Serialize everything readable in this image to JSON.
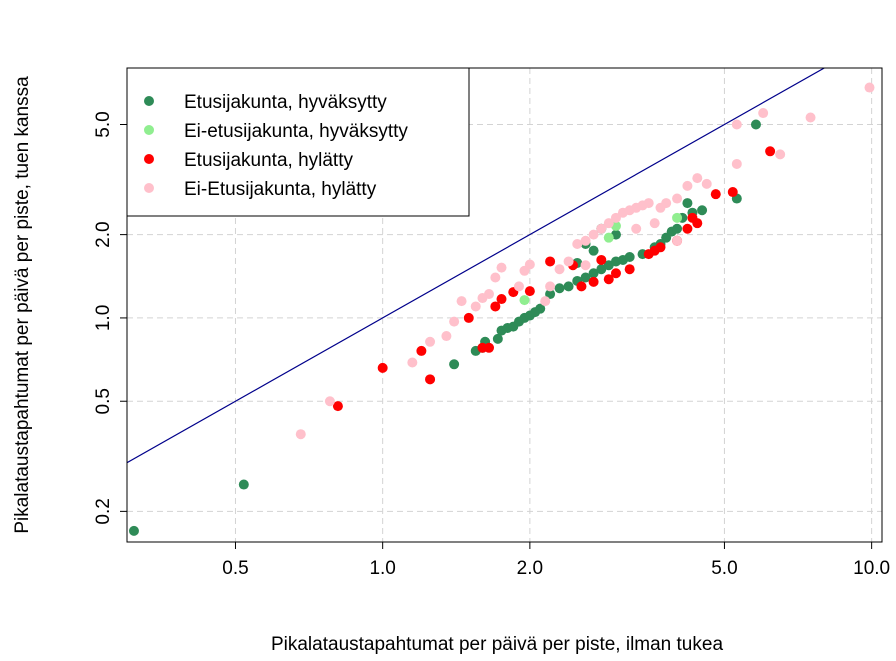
{
  "chart_data": {
    "type": "scatter",
    "title": "",
    "xlabel": "Pikalataustapahtumat per päivä per piste, ilman tukea",
    "ylabel": "Pikalataustapahtumat per päivä per piste, tuen kanssa",
    "xscale": "log",
    "yscale": "log",
    "xlim": [
      0.3,
      10.5
    ],
    "ylim": [
      0.155,
      8.0
    ],
    "xticks": [
      0.5,
      1.0,
      2.0,
      5.0,
      10.0
    ],
    "xtick_labels": [
      "0.5",
      "1.0",
      "2.0",
      "5.0",
      "10.0"
    ],
    "yticks": [
      0.2,
      0.5,
      1.0,
      2.0,
      5.0
    ],
    "ytick_labels": [
      "0.2",
      "0.5",
      "1.0",
      "2.0",
      "5.0"
    ],
    "grid": true,
    "legend_position": "top-left",
    "reference_line": {
      "type": "identity",
      "color": "#00008b"
    },
    "series": [
      {
        "name": "Etusijakunta, hyväksytty",
        "color": "#2e8b57",
        "points": [
          [
            0.31,
            0.17
          ],
          [
            0.52,
            0.25
          ],
          [
            1.4,
            0.68
          ],
          [
            1.55,
            0.76
          ],
          [
            1.6,
            0.78
          ],
          [
            1.62,
            0.82
          ],
          [
            1.72,
            0.84
          ],
          [
            1.75,
            0.9
          ],
          [
            1.8,
            0.92
          ],
          [
            1.85,
            0.93
          ],
          [
            1.9,
            0.97
          ],
          [
            1.95,
            1.0
          ],
          [
            2.0,
            1.02
          ],
          [
            2.05,
            1.05
          ],
          [
            2.1,
            1.08
          ],
          [
            2.2,
            1.22
          ],
          [
            2.3,
            1.28
          ],
          [
            2.4,
            1.3
          ],
          [
            2.5,
            1.36
          ],
          [
            2.6,
            1.4
          ],
          [
            2.7,
            1.45
          ],
          [
            2.8,
            1.5
          ],
          [
            2.9,
            1.55
          ],
          [
            3.0,
            1.6
          ],
          [
            3.1,
            1.62
          ],
          [
            3.2,
            1.66
          ],
          [
            3.4,
            1.7
          ],
          [
            3.6,
            1.8
          ],
          [
            3.7,
            1.85
          ],
          [
            3.8,
            1.95
          ],
          [
            3.9,
            2.05
          ],
          [
            4.0,
            2.1
          ],
          [
            4.1,
            2.3
          ],
          [
            4.3,
            2.4
          ],
          [
            4.5,
            2.45
          ],
          [
            2.5,
            1.58
          ],
          [
            2.7,
            1.75
          ],
          [
            2.6,
            1.85
          ],
          [
            3.0,
            2.0
          ],
          [
            2.8,
            2.1
          ],
          [
            4.2,
            2.6
          ],
          [
            5.3,
            2.7
          ],
          [
            5.8,
            5.0
          ]
        ]
      },
      {
        "name": "Ei-etusijakunta, hyväksytty",
        "color": "#90ee90",
        "points": [
          [
            1.95,
            1.16
          ],
          [
            2.9,
            1.95
          ],
          [
            3.0,
            2.15
          ],
          [
            4.0,
            2.3
          ]
        ]
      },
      {
        "name": "Etusijakunta, hylätty",
        "color": "#ff0000",
        "points": [
          [
            0.81,
            0.48
          ],
          [
            1.0,
            0.66
          ],
          [
            1.2,
            0.76
          ],
          [
            1.25,
            0.6
          ],
          [
            1.5,
            1.0
          ],
          [
            1.6,
            0.78
          ],
          [
            1.65,
            0.78
          ],
          [
            1.7,
            1.1
          ],
          [
            1.75,
            1.17
          ],
          [
            1.85,
            1.24
          ],
          [
            2.0,
            1.25
          ],
          [
            2.2,
            1.6
          ],
          [
            2.45,
            1.55
          ],
          [
            2.55,
            1.3
          ],
          [
            2.7,
            1.35
          ],
          [
            2.8,
            1.62
          ],
          [
            2.9,
            1.38
          ],
          [
            3.0,
            1.45
          ],
          [
            3.2,
            1.5
          ],
          [
            3.5,
            1.7
          ],
          [
            3.6,
            1.75
          ],
          [
            3.7,
            1.8
          ],
          [
            4.0,
            1.9
          ],
          [
            4.2,
            2.1
          ],
          [
            4.3,
            2.3
          ],
          [
            4.4,
            2.2
          ],
          [
            4.8,
            2.8
          ],
          [
            5.2,
            2.85
          ],
          [
            6.2,
            4.0
          ]
        ]
      },
      {
        "name": "Ei-Etusijakunta, hylätty",
        "color": "#ffc0cb",
        "points": [
          [
            0.68,
            0.38
          ],
          [
            0.78,
            0.5
          ],
          [
            1.15,
            0.69
          ],
          [
            1.25,
            0.82
          ],
          [
            1.35,
            0.86
          ],
          [
            1.4,
            0.97
          ],
          [
            1.45,
            1.15
          ],
          [
            1.55,
            1.1
          ],
          [
            1.6,
            1.18
          ],
          [
            1.65,
            1.22
          ],
          [
            1.7,
            1.4
          ],
          [
            1.75,
            1.52
          ],
          [
            1.9,
            1.3
          ],
          [
            1.95,
            1.48
          ],
          [
            2.0,
            1.56
          ],
          [
            2.15,
            1.15
          ],
          [
            2.2,
            1.3
          ],
          [
            2.3,
            1.5
          ],
          [
            2.4,
            1.6
          ],
          [
            2.5,
            1.85
          ],
          [
            2.6,
            1.9
          ],
          [
            2.7,
            2.0
          ],
          [
            2.8,
            2.1
          ],
          [
            2.9,
            2.2
          ],
          [
            3.0,
            2.3
          ],
          [
            3.1,
            2.4
          ],
          [
            3.2,
            2.45
          ],
          [
            3.3,
            2.5
          ],
          [
            3.4,
            2.55
          ],
          [
            3.5,
            2.6
          ],
          [
            3.6,
            2.2
          ],
          [
            3.7,
            2.5
          ],
          [
            3.8,
            2.6
          ],
          [
            4.0,
            2.7
          ],
          [
            4.2,
            3.0
          ],
          [
            4.4,
            3.2
          ],
          [
            4.6,
            3.05
          ],
          [
            5.3,
            3.6
          ],
          [
            5.3,
            5.0
          ],
          [
            6.0,
            5.5
          ],
          [
            6.5,
            3.9
          ],
          [
            7.5,
            5.3
          ],
          [
            9.9,
            6.8
          ],
          [
            4.0,
            1.9
          ],
          [
            2.6,
            1.55
          ],
          [
            3.3,
            2.1
          ]
        ]
      }
    ]
  }
}
